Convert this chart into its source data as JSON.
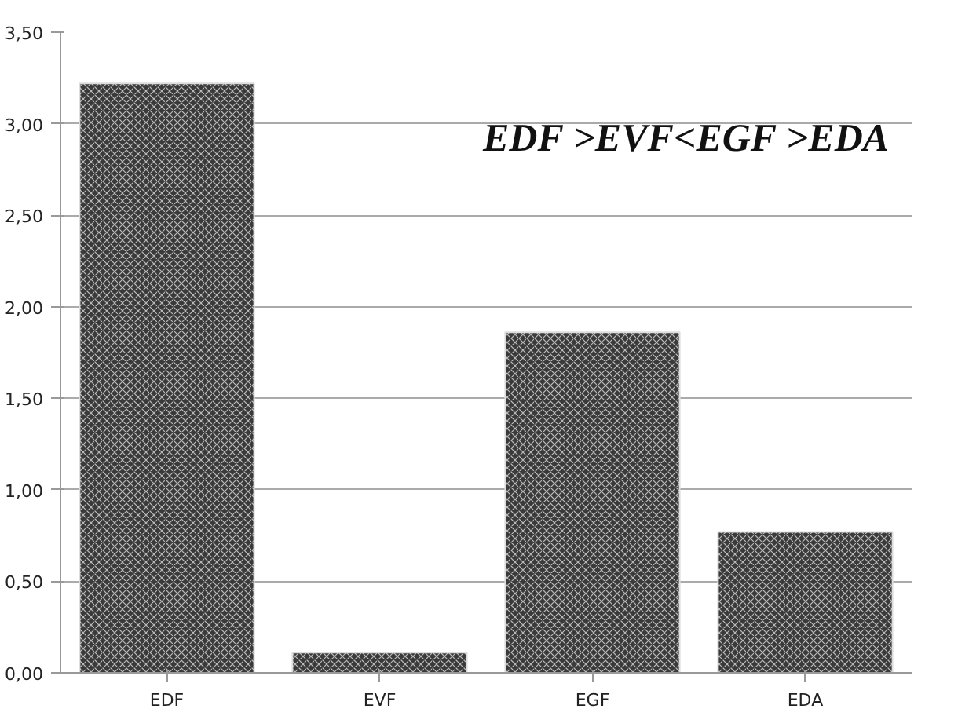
{
  "chart_data": {
    "type": "bar",
    "categories": [
      "EDF",
      "EVF",
      "EGF",
      "EDA"
    ],
    "values": [
      3.22,
      0.11,
      1.86,
      0.77
    ],
    "color": "#3a3a3a",
    "ylim": [
      0,
      3.5
    ],
    "yticks": [
      {
        "value": 0,
        "label": "0,00"
      },
      {
        "value": 0.5,
        "label": "0,50"
      },
      {
        "value": 1,
        "label": "1,00"
      },
      {
        "value": 1.5,
        "label": "1,50"
      },
      {
        "value": 2,
        "label": "2,00"
      },
      {
        "value": 2.5,
        "label": "2,50"
      },
      {
        "value": 3,
        "label": "3,00"
      },
      {
        "value": 3.5,
        "label": "3,50"
      }
    ],
    "grid": "y",
    "annotations": [
      "EDF >EVF<EGF >EDA"
    ]
  }
}
